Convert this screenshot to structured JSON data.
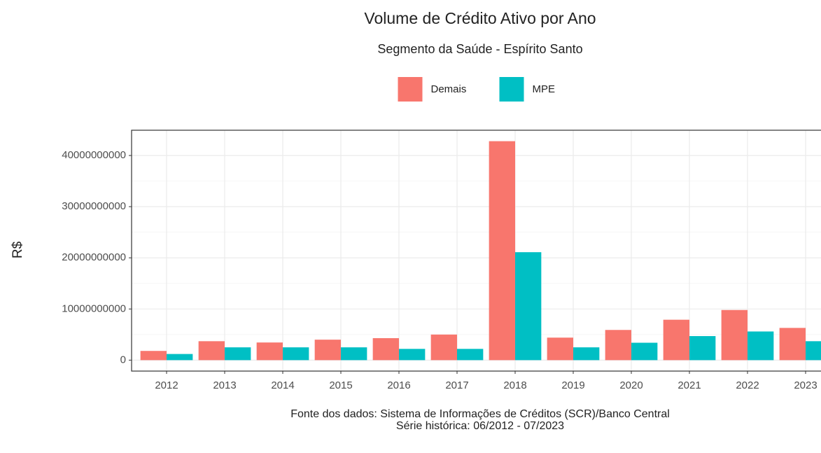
{
  "chart_data": {
    "type": "bar",
    "title": "Volume de Crédito Ativo por Ano",
    "subtitle": "Segmento da Saúde - Espírito Santo",
    "y_label": "R$",
    "caption": [
      "Fonte dos dados: Sistema de Informações de Créditos (SCR)/Banco Central",
      "Série histórica: 06/2012 - 07/2023"
    ],
    "categories": [
      "2012",
      "2013",
      "2014",
      "2015",
      "2016",
      "2017",
      "2018",
      "2019",
      "2020",
      "2021",
      "2022",
      "2023"
    ],
    "series": [
      {
        "name": "Demais",
        "color": "#F8766D",
        "values": [
          1800000000,
          3700000000,
          3450000000,
          4000000000,
          4300000000,
          5000000000,
          42800000000,
          4400000000,
          5900000000,
          7900000000,
          9800000000,
          6300000000
        ]
      },
      {
        "name": "MPE",
        "color": "#00BFC4",
        "values": [
          1200000000,
          2500000000,
          2500000000,
          2500000000,
          2200000000,
          2200000000,
          21100000000,
          2500000000,
          3400000000,
          4700000000,
          5600000000,
          3700000000
        ]
      }
    ],
    "ylim": [
      -2140000000,
      44940000000
    ],
    "yticks": [
      0,
      10000000000,
      20000000000,
      30000000000,
      40000000000
    ],
    "grid": true,
    "legend": "top"
  }
}
